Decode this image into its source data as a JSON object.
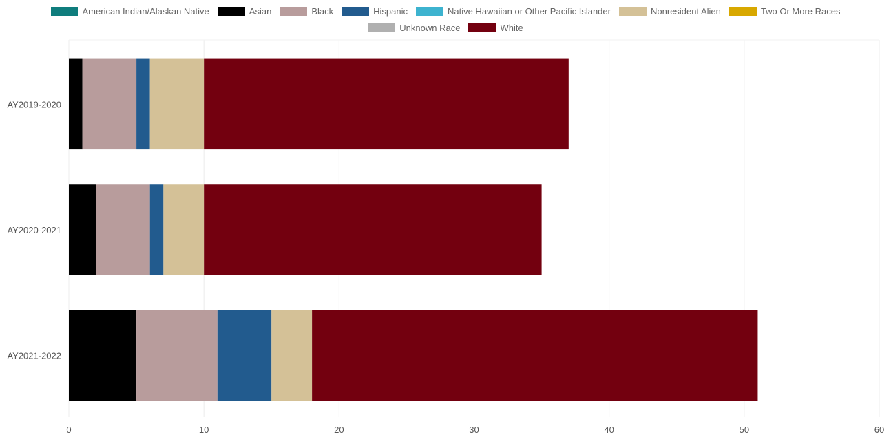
{
  "chart_data": {
    "type": "bar",
    "orientation": "horizontal",
    "stacked": true,
    "categories": [
      "AY2019-2020",
      "AY2020-2021",
      "AY2021-2022"
    ],
    "series": [
      {
        "name": "American Indian/Alaskan Native",
        "color": "#0f7d7d",
        "values": [
          0,
          0,
          0
        ]
      },
      {
        "name": "Asian",
        "color": "#000000",
        "values": [
          1,
          2,
          5
        ]
      },
      {
        "name": "Black",
        "color": "#b89c9c",
        "values": [
          4,
          4,
          6
        ]
      },
      {
        "name": "Hispanic",
        "color": "#225b8e",
        "values": [
          1,
          1,
          4
        ]
      },
      {
        "name": "Native Hawaiian or Other Pacific Islander",
        "color": "#3db3cf",
        "values": [
          0,
          0,
          0
        ]
      },
      {
        "name": "Nonresident Alien",
        "color": "#d4c197",
        "values": [
          4,
          3,
          3
        ]
      },
      {
        "name": "Two Or More Races",
        "color": "#d8a800",
        "values": [
          0,
          0,
          0
        ]
      },
      {
        "name": "Unknown Race",
        "color": "#b0b0b0",
        "values": [
          0,
          0,
          0
        ]
      },
      {
        "name": "White",
        "color": "#73000f",
        "values": [
          27,
          25,
          33
        ]
      }
    ],
    "xlim": [
      0,
      60
    ],
    "xticks": [
      0,
      10,
      20,
      30,
      40,
      50,
      60
    ],
    "xtick_labels": [
      "0",
      "10",
      "20",
      "30",
      "40",
      "50",
      "60"
    ],
    "grid": true,
    "legend_position": "top-center"
  }
}
